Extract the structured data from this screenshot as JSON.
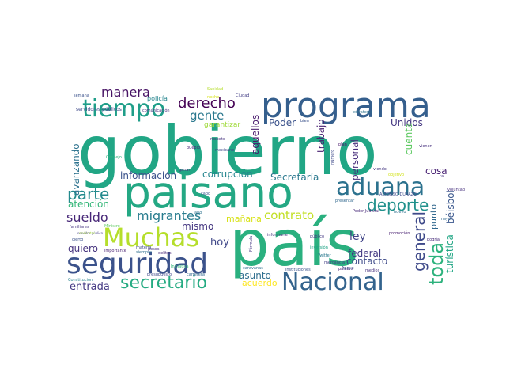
{
  "wordcloud": {
    "words": [
      {
        "text": "gobierno",
        "color": "#21a685"
      },
      {
        "text": "paisano",
        "color": "#24a884"
      },
      {
        "text": "país",
        "color": "#2ab07f"
      },
      {
        "text": "programa",
        "color": "#355f8d"
      },
      {
        "text": "seguridad",
        "color": "#3b528b"
      },
      {
        "text": "Muchas",
        "color": "#b5de2b"
      },
      {
        "text": "aduana",
        "color": "#2c728e"
      },
      {
        "text": "Nacional",
        "color": "#33638d"
      },
      {
        "text": "tiempo",
        "color": "#1f9e89"
      },
      {
        "text": "secretario",
        "color": "#25ab82"
      },
      {
        "text": "parte",
        "color": "#238a8d"
      },
      {
        "text": "deporte",
        "color": "#21918c"
      },
      {
        "text": "general",
        "color": "#3e4989"
      },
      {
        "text": "toda",
        "color": "#2db27d"
      },
      {
        "text": "derecho",
        "color": "#440154"
      },
      {
        "text": "sueldo",
        "color": "#482878"
      },
      {
        "text": "migrantes",
        "color": "#287c8e"
      },
      {
        "text": "manera",
        "color": "#471365"
      },
      {
        "text": "contrato",
        "color": "#c2df23"
      },
      {
        "text": "gente",
        "color": "#2a788e"
      },
      {
        "text": "entrada",
        "color": "#443983"
      },
      {
        "text": "ley",
        "color": "#414487"
      },
      {
        "text": "hoy",
        "color": "#3f4788"
      },
      {
        "text": "quiero",
        "color": "#46337e"
      },
      {
        "text": "mismo",
        "color": "#453781"
      },
      {
        "text": "asunto",
        "color": "#2e6e8e"
      },
      {
        "text": "corrupción",
        "color": "#25858e"
      },
      {
        "text": "Secretaría",
        "color": "#2a788e"
      },
      {
        "text": "información",
        "color": "#3b528b"
      },
      {
        "text": "cosa",
        "color": "#482173"
      },
      {
        "text": "contacto",
        "color": "#3e4a89"
      },
      {
        "text": "federal",
        "color": "#443a83"
      },
      {
        "text": "turística",
        "color": "#21a685"
      },
      {
        "text": "béisbol",
        "color": "#39568c"
      },
      {
        "text": "atención",
        "color": "#35b779"
      },
      {
        "text": "personal",
        "color": "#472d7b"
      },
      {
        "text": "trabajo",
        "color": "#482071"
      },
      {
        "text": "aquellos",
        "color": "#481a6c"
      },
      {
        "text": "avanzando",
        "color": "#2c728e"
      },
      {
        "text": "Poder",
        "color": "#3b528b"
      },
      {
        "text": "Unidos",
        "color": "#453882"
      },
      {
        "text": "acuerdo",
        "color": "#fde725"
      },
      {
        "text": "mañana",
        "color": "#d8e219"
      },
      {
        "text": "garantizar",
        "color": "#a0da39"
      },
      {
        "text": "cuenta",
        "color": "#5ec962"
      },
      {
        "text": "punto",
        "color": "#31688e"
      },
      {
        "text": "policía",
        "color": "#25858e"
      },
      {
        "text": "servidores públicos",
        "color": "#3e4989"
      },
      {
        "text": "comunicación",
        "color": "#46307e"
      },
      {
        "text": "estrategia",
        "color": "#2c728e"
      },
      {
        "text": "semana",
        "color": "#3b528b"
      },
      {
        "text": "Ciudad",
        "color": "#433e85"
      },
      {
        "text": "respeto",
        "color": "#46327e"
      },
      {
        "text": "pueblo",
        "color": "#482677"
      },
      {
        "text": "mexicano",
        "color": "#3e4989"
      },
      {
        "text": "plan",
        "color": "#48186a"
      },
      {
        "text": "ganar",
        "color": "#46337e"
      },
      {
        "text": "cabo",
        "color": "#39568c"
      },
      {
        "text": "Poder Judicial",
        "color": "#482979"
      },
      {
        "text": "ALFONSO DURAZO",
        "color": "#3e4a89"
      },
      {
        "text": "nuevo",
        "color": "#2e6e8e"
      },
      {
        "text": "presentar",
        "color": "#31688e"
      },
      {
        "text": "viendo",
        "color": "#453781"
      },
      {
        "text": "objetivo",
        "color": "#d2e21b"
      },
      {
        "text": "vienen",
        "color": "#46307e"
      },
      {
        "text": "familiares",
        "color": "#463480"
      },
      {
        "text": "Ministro",
        "color": "#5ec962"
      },
      {
        "text": "cierto",
        "color": "#3b528b"
      },
      {
        "text": "servidor público",
        "color": "#433e85"
      },
      {
        "text": "sindicatos",
        "color": "#a5db36"
      },
      {
        "text": "importante",
        "color": "#481f70"
      },
      {
        "text": "materia",
        "color": "#3e4989"
      },
      {
        "text": "siempre",
        "color": "#2e6e8e"
      },
      {
        "text": "pesos",
        "color": "#472f7d"
      },
      {
        "text": "delitos",
        "color": "#482878"
      },
      {
        "text": "presupuesto",
        "color": "#3e4989"
      },
      {
        "text": "carretera",
        "color": "#31688e"
      },
      {
        "text": "Constitución",
        "color": "#26828e"
      },
      {
        "text": "Fórmula",
        "color": "#453882"
      },
      {
        "text": "caravanas",
        "color": "#2e6e8e"
      },
      {
        "text": "instituciones",
        "color": "#3b528b"
      },
      {
        "text": "palabra",
        "color": "#482677"
      },
      {
        "text": "medios",
        "color": "#46307e"
      },
      {
        "text": "informarle",
        "color": "#46337e"
      },
      {
        "text": "público",
        "color": "#443983"
      },
      {
        "text": "Twitter",
        "color": "#2a788e"
      },
      {
        "text": "inversión",
        "color": "#20a386"
      },
      {
        "text": "mercancía",
        "color": "#433e85"
      },
      {
        "text": "promoción",
        "color": "#482071"
      },
      {
        "text": "podría",
        "color": "#472c7a"
      },
      {
        "text": "mayor",
        "color": "#31688e"
      },
      {
        "text": "Apoyo",
        "color": "#3e4989"
      },
      {
        "text": "Sanidad",
        "color": "#b5de2b"
      },
      {
        "text": "Iniciativa",
        "color": "#35b779"
      },
      {
        "text": "bien",
        "color": "#3b528b"
      },
      {
        "text": "tal",
        "color": "#463480"
      },
      {
        "text": "año",
        "color": "#2c728e"
      },
      {
        "text": "Consejo",
        "color": "#2db27d"
      },
      {
        "text": "número",
        "color": "#3e4989"
      },
      {
        "text": "voluntad",
        "color": "#46307e"
      },
      {
        "text": "noche",
        "color": "#d8e219"
      }
    ]
  }
}
